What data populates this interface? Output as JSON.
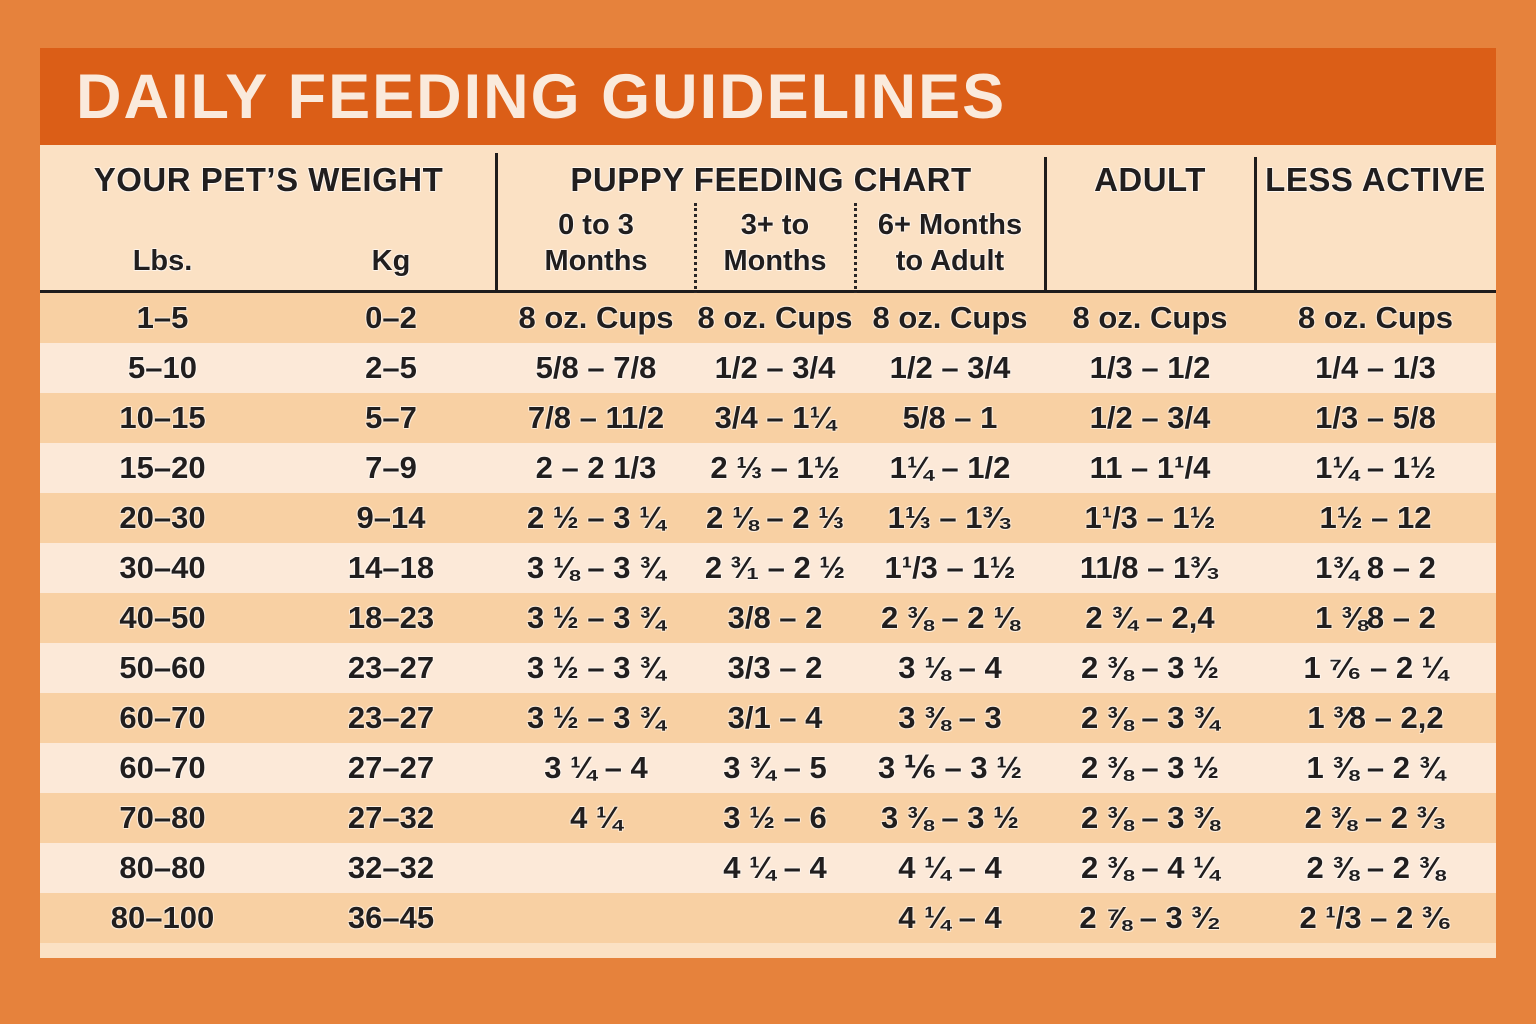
{
  "title": "DAILY FEEDING GUIDELINES",
  "headers": {
    "weight": "YOUR PET’S WEIGHT",
    "puppy": "PUPPY FEEDING CHART",
    "adult": "ADULT",
    "less_active": "LESS ACTIVE"
  },
  "sub": {
    "lbs": "Lbs.",
    "kg": "Kg",
    "c1": [
      "0 to 3",
      "Months"
    ],
    "c2": [
      "3+ to",
      "Months"
    ],
    "c3": [
      "6+ Months",
      "to Adult"
    ]
  },
  "colors": {
    "background": "#E6823C",
    "title_band": "#DB5E17",
    "title_text": "#FAEADC",
    "table_background": "#FBE1C4",
    "row_dark": "#F8D0A3",
    "row_light": "#FCE9D8",
    "text": "#211E1E"
  },
  "chart_data": {
    "type": "table",
    "title": "DAILY FEEDING GUIDELINES",
    "column_groups": [
      "YOUR PET’S WEIGHT",
      "PUPPY FEEDING CHART",
      "ADULT",
      "LESS ACTIVE"
    ],
    "columns": [
      "Lbs.",
      "Kg",
      "0 to 3 Months",
      "3+ to Months",
      "6+ Months to Adult",
      "ADULT",
      "LESS ACTIVE"
    ],
    "unit_row": [
      "1–5",
      "0–2",
      "8 oz. Cups",
      "8 oz. Cups",
      "8 oz. Cups",
      "8 oz. Cups",
      "8 oz. Cups"
    ],
    "rows": [
      [
        "1–5",
        "0–2",
        "8 oz. Cups",
        "8 oz. Cups",
        "8 oz. Cups",
        "8 oz. Cups",
        "8 oz. Cups"
      ],
      [
        "5–10",
        "2–5",
        "5/8 – 7/8",
        "1/2 – 3/4",
        "1/2 – 3/4",
        "1/3 – 1/2",
        "1/4 – 1/3"
      ],
      [
        "10–15",
        "5–7",
        "7/8 – 11/2",
        "3/4 – 1¼",
        "5/8 – 1",
        "1/2 – 3/4",
        "1/3 – 5/8"
      ],
      [
        "15–20",
        "7–9",
        "2 – 2 1/3",
        "2 ⅓ – 1½",
        "1¼ – 1/2",
        "11 – 1¹/4",
        "1¼ – 1½"
      ],
      [
        "20–30",
        "9–14",
        "2 ½ – 3 ¼",
        "2 ⅛ – 2 ⅓",
        "1⅓ – 1³⁄₃",
        "1¹/3 – 1½",
        "1½ – 12"
      ],
      [
        "30–40",
        "14–18",
        "3 ⅛ – 3 ¾",
        "2 ³⁄₁ – 2 ½",
        "1¹/3 – 1½",
        "11/8 – 1³⁄₃",
        "1¾ 8 – 2"
      ],
      [
        "40–50",
        "18–23",
        "3 ½ – 3 ¾",
        "3/8 – 2",
        "2 ⅜ – 2 ⅛",
        "2 ¾ – 2,4",
        "1 ⅜8 – 2"
      ],
      [
        "50–60",
        "23–27",
        "3 ½ – 3 ¾",
        "3/3 – 2",
        "3 ⅛ – 4",
        "2 ⅜ – 3 ½",
        "1 ⁷⁄₆ – 2 ¼"
      ],
      [
        "60–70",
        "23–27",
        "3 ½ – 3 ¾",
        "3/1 – 4",
        "3 ⅜ – 3",
        "2 ⅜ – 3 ¾",
        "1 ³⁄8 – 2,2"
      ],
      [
        "60–70",
        "27–27",
        "3 ¼ – 4",
        "3 ¾ – 5",
        "3 ⅙ – 3 ½",
        "2 ⅜ – 3 ½",
        "1 ⅜ – 2 ¾"
      ],
      [
        "70–80",
        "27–32",
        "4 ¼",
        "3 ½ – 6",
        "3 ⅜ – 3 ½",
        "2 ⅜ – 3 ⅜",
        "2 ⅜ – 2 ³⁄₃"
      ],
      [
        "80–80",
        "32–32",
        "",
        "4 ¼ – 4",
        "4 ¼ – 4",
        "2 ⅜ – 4 ¼",
        "2 ⅜ – 2 ⅜"
      ],
      [
        "80–100",
        "36–45",
        "",
        "",
        "4 ¼ – 4",
        "2 ⅞ – 3 ³⁄₂",
        "2 ¹/3 – 2 ³⁄₆"
      ]
    ]
  }
}
